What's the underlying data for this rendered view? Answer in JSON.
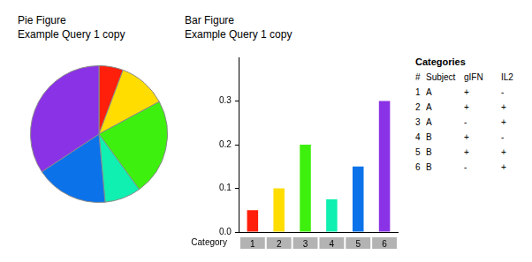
{
  "chart_data": [
    {
      "type": "pie",
      "title": "Pie Figure",
      "subtitle": "Example Query 1 copy",
      "values": [
        0.05,
        0.1,
        0.2,
        0.075,
        0.15,
        0.3
      ],
      "colors": [
        "#ff1f0a",
        "#ffdd00",
        "#3ef00e",
        "#10f0b0",
        "#0b72ea",
        "#8a32e6"
      ]
    },
    {
      "type": "bar",
      "title": "Bar Figure",
      "subtitle": "Example Query 1 copy",
      "xlabel": "Category",
      "categories": [
        "1",
        "2",
        "3",
        "4",
        "5",
        "6"
      ],
      "values": [
        0.05,
        0.1,
        0.2,
        0.075,
        0.15,
        0.3
      ],
      "colors": [
        "#ff1f0a",
        "#ffdd00",
        "#3ef00e",
        "#10f0b0",
        "#0b72ea",
        "#8a32e6"
      ],
      "ylim": [
        0,
        0.4
      ],
      "yticks": [
        {
          "value": 0,
          "label": "0.0"
        },
        0.1,
        0.2,
        0.3
      ],
      "grid": false
    }
  ],
  "table": {
    "title": "Categories",
    "header": [
      "#",
      "Subject",
      "gIFN",
      "IL2"
    ],
    "rows": [
      [
        1,
        "A",
        "+",
        "-"
      ],
      [
        2,
        "A",
        "+",
        "+"
      ],
      [
        3,
        "A",
        "-",
        "+"
      ],
      [
        4,
        "B",
        "+",
        "-"
      ],
      [
        5,
        "B",
        "+",
        "+"
      ],
      [
        6,
        "B",
        "-",
        "+"
      ]
    ]
  }
}
